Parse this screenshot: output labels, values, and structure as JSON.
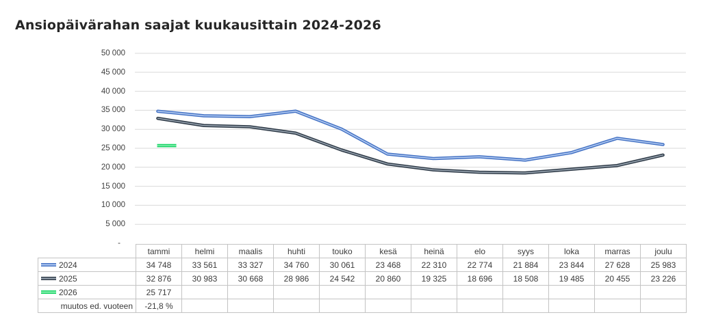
{
  "title": "Ansiopäivärahan saajat kuukausittain 2024-2026",
  "colors": {
    "gridline": "#d9d9d9",
    "table_border": "#c3c3c3",
    "text": "#3f3f3f",
    "title_text": "#262626"
  },
  "chart_data": {
    "type": "line",
    "title": "Ansiopäivärahan saajat kuukausittain 2024-2026",
    "categories": [
      "tammi",
      "helmi",
      "maalis",
      "huhti",
      "touko",
      "kesä",
      "heinä",
      "elo",
      "syys",
      "loka",
      "marras",
      "joulu"
    ],
    "series": [
      {
        "name": "2024",
        "color": "#4472c4",
        "inner_color": "#b4ccf2",
        "values": [
          34748,
          33561,
          33327,
          34760,
          30061,
          23468,
          22310,
          22774,
          21884,
          23844,
          27628,
          25983
        ]
      },
      {
        "name": "2025",
        "color": "#2e3a47",
        "inner_color": "#9aa6b2",
        "values": [
          32876,
          30983,
          30668,
          28986,
          24542,
          20860,
          19325,
          18696,
          18508,
          19485,
          20455,
          23226
        ]
      },
      {
        "name": "2026",
        "color": "#17d264",
        "inner_color": "#8cf2b4",
        "values": [
          25717,
          null,
          null,
          null,
          null,
          null,
          null,
          null,
          null,
          null,
          null,
          null
        ]
      }
    ],
    "ylim": [
      0,
      50000
    ],
    "ytick_step": 5000,
    "ytick_labels_top_to_bottom": [
      "50 000",
      "45 000",
      "40 000",
      "35 000",
      "30 000",
      "25 000",
      "20 000",
      "15 000",
      "10 000",
      "5 000",
      "-"
    ],
    "grid": "horizontal-only",
    "legend_position": "table-left-column",
    "line_style": "double-line"
  },
  "table": {
    "headers": [
      "",
      "tammi",
      "helmi",
      "maalis",
      "huhti",
      "touko",
      "kesä",
      "heinä",
      "elo",
      "syys",
      "loka",
      "marras",
      "joulu"
    ],
    "rows": [
      {
        "label": "2024",
        "series_index": 0,
        "cells": [
          "34 748",
          "33 561",
          "33 327",
          "34 760",
          "30 061",
          "23 468",
          "22 310",
          "22 774",
          "21 884",
          "23 844",
          "27 628",
          "25 983"
        ]
      },
      {
        "label": "2025",
        "series_index": 1,
        "cells": [
          "32 876",
          "30 983",
          "30 668",
          "28 986",
          "24 542",
          "20 860",
          "19 325",
          "18 696",
          "18 508",
          "19 485",
          "20 455",
          "23 226"
        ]
      },
      {
        "label": "2026",
        "series_index": 2,
        "cells": [
          "25 717",
          "",
          "",
          "",
          "",
          "",
          "",
          "",
          "",
          "",
          "",
          ""
        ]
      },
      {
        "label": "muutos ed. vuoteen",
        "series_index": null,
        "cells": [
          "-21,8 %",
          "",
          "",
          "",
          "",
          "",
          "",
          "",
          "",
          "",
          "",
          ""
        ]
      }
    ]
  }
}
